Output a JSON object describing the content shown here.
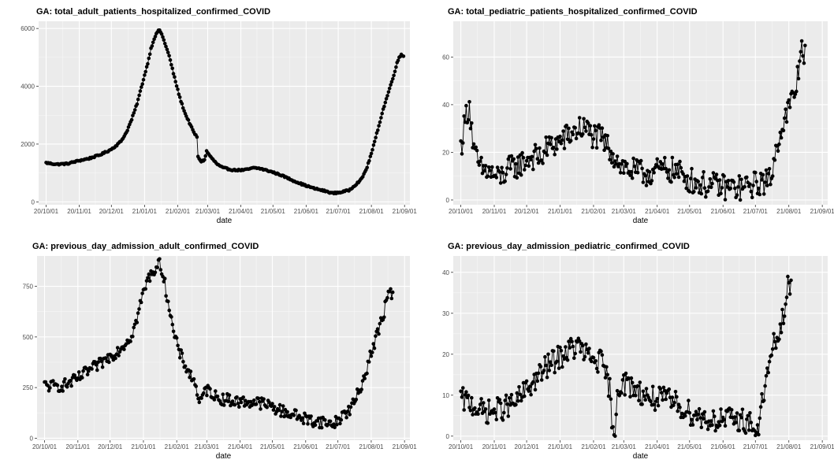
{
  "chart_data": [
    {
      "type": "line",
      "title": "GA: total_adult_patients_hospitalized_confirmed_COVID",
      "xlabel": "date",
      "ylabel": "",
      "xticks": [
        "20/10/01",
        "20/11/01",
        "20/12/01",
        "21/01/01",
        "21/02/01",
        "21/03/01",
        "21/04/01",
        "21/05/01",
        "21/06/01",
        "21/07/01",
        "21/08/01",
        "21/09/01"
      ],
      "yticks": [
        0,
        2000,
        4000,
        6000
      ],
      "ylim": [
        -100,
        6250
      ],
      "x_range_days": [
        -7,
        340
      ],
      "grid": true,
      "markers": "points",
      "anchors": [
        [
          0,
          1350
        ],
        [
          10,
          1300
        ],
        [
          20,
          1320
        ],
        [
          30,
          1420
        ],
        [
          40,
          1500
        ],
        [
          50,
          1620
        ],
        [
          60,
          1800
        ],
        [
          65,
          1930
        ],
        [
          70,
          2100
        ],
        [
          75,
          2400
        ],
        [
          80,
          2850
        ],
        [
          85,
          3400
        ],
        [
          90,
          4100
        ],
        [
          95,
          4800
        ],
        [
          98,
          5300
        ],
        [
          101,
          5650
        ],
        [
          104,
          5880
        ],
        [
          106,
          5950
        ],
        [
          108,
          5800
        ],
        [
          110,
          5600
        ],
        [
          115,
          5050
        ],
        [
          120,
          4300
        ],
        [
          125,
          3600
        ],
        [
          130,
          3050
        ],
        [
          135,
          2650
        ],
        [
          138,
          2400
        ],
        [
          141,
          2250
        ],
        [
          142,
          1550
        ],
        [
          145,
          1400
        ],
        [
          148,
          1450
        ],
        [
          150,
          1750
        ],
        [
          155,
          1500
        ],
        [
          160,
          1300
        ],
        [
          165,
          1180
        ],
        [
          175,
          1100
        ],
        [
          185,
          1100
        ],
        [
          195,
          1180
        ],
        [
          200,
          1150
        ],
        [
          210,
          1050
        ],
        [
          220,
          920
        ],
        [
          230,
          750
        ],
        [
          240,
          600
        ],
        [
          250,
          470
        ],
        [
          260,
          380
        ],
        [
          268,
          300
        ],
        [
          275,
          330
        ],
        [
          283,
          400
        ],
        [
          290,
          620
        ],
        [
          295,
          800
        ],
        [
          300,
          1200
        ],
        [
          305,
          1800
        ],
        [
          310,
          2500
        ],
        [
          315,
          3200
        ],
        [
          320,
          3800
        ],
        [
          325,
          4400
        ],
        [
          328,
          4800
        ],
        [
          330,
          5000
        ],
        [
          332,
          5100
        ],
        [
          334,
          5050
        ]
      ],
      "jitter": 25
    },
    {
      "type": "line",
      "title": "GA: total_pediatric_patients_hospitalized_confirmed_COVID",
      "xlabel": "date",
      "ylabel": "",
      "xticks": [
        "20/10/01",
        "20/11/01",
        "20/12/01",
        "21/01/01",
        "21/02/01",
        "21/03/01",
        "21/04/01",
        "21/05/01",
        "21/06/01",
        "21/07/01",
        "21/08/01",
        "21/09/01"
      ],
      "yticks": [
        0,
        20,
        40,
        60
      ],
      "ylim": [
        -2,
        75
      ],
      "x_range_days": [
        -7,
        340
      ],
      "grid": true,
      "markers": "points",
      "anchors": [
        [
          0,
          22
        ],
        [
          5,
          36
        ],
        [
          8,
          40
        ],
        [
          12,
          20
        ],
        [
          18,
          13
        ],
        [
          25,
          12
        ],
        [
          35,
          9
        ],
        [
          45,
          13
        ],
        [
          55,
          15
        ],
        [
          65,
          18
        ],
        [
          75,
          18
        ],
        [
          80,
          22
        ],
        [
          90,
          24
        ],
        [
          100,
          27
        ],
        [
          110,
          30
        ],
        [
          115,
          30
        ],
        [
          120,
          28
        ],
        [
          125,
          26
        ],
        [
          130,
          26
        ],
        [
          140,
          20
        ],
        [
          150,
          14
        ],
        [
          160,
          12
        ],
        [
          170,
          11
        ],
        [
          180,
          12
        ],
        [
          190,
          13
        ],
        [
          200,
          12
        ],
        [
          210,
          9
        ],
        [
          220,
          7
        ],
        [
          230,
          6
        ],
        [
          240,
          6
        ],
        [
          250,
          5
        ],
        [
          260,
          5
        ],
        [
          270,
          6
        ],
        [
          280,
          8
        ],
        [
          285,
          7
        ],
        [
          290,
          15
        ],
        [
          295,
          28
        ],
        [
          300,
          33
        ],
        [
          305,
          40
        ],
        [
          310,
          45
        ],
        [
          313,
          55
        ],
        [
          316,
          66
        ],
        [
          319,
          60
        ]
      ],
      "jitter": 5.5
    },
    {
      "type": "line",
      "title": "GA: previous_day_admission_adult_confirmed_COVID",
      "xlabel": "date",
      "ylabel": "",
      "xticks": [
        "20/10/01",
        "20/11/01",
        "20/12/01",
        "21/01/01",
        "21/02/01",
        "21/03/01",
        "21/04/01",
        "21/05/01",
        "21/06/01",
        "21/07/01",
        "21/08/01",
        "21/09/01"
      ],
      "yticks": [
        0,
        250,
        500,
        750
      ],
      "ylim": [
        -10,
        900
      ],
      "x_range_days": [
        -7,
        340
      ],
      "grid": true,
      "markers": "points",
      "anchors": [
        [
          0,
          260
        ],
        [
          10,
          255
        ],
        [
          20,
          265
        ],
        [
          30,
          290
        ],
        [
          40,
          330
        ],
        [
          50,
          360
        ],
        [
          60,
          400
        ],
        [
          70,
          440
        ],
        [
          80,
          500
        ],
        [
          85,
          570
        ],
        [
          90,
          680
        ],
        [
          95,
          770
        ],
        [
          100,
          820
        ],
        [
          105,
          850
        ],
        [
          108,
          860
        ],
        [
          112,
          760
        ],
        [
          116,
          650
        ],
        [
          120,
          520
        ],
        [
          125,
          430
        ],
        [
          130,
          370
        ],
        [
          135,
          320
        ],
        [
          140,
          270
        ],
        [
          145,
          170
        ],
        [
          150,
          240
        ],
        [
          155,
          230
        ],
        [
          160,
          200
        ],
        [
          170,
          190
        ],
        [
          180,
          180
        ],
        [
          190,
          180
        ],
        [
          200,
          175
        ],
        [
          210,
          160
        ],
        [
          220,
          135
        ],
        [
          230,
          120
        ],
        [
          240,
          100
        ],
        [
          250,
          85
        ],
        [
          260,
          80
        ],
        [
          265,
          70
        ],
        [
          270,
          75
        ],
        [
          275,
          100
        ],
        [
          280,
          125
        ],
        [
          285,
          145
        ],
        [
          290,
          200
        ],
        [
          295,
          260
        ],
        [
          300,
          350
        ],
        [
          305,
          440
        ],
        [
          310,
          520
        ],
        [
          315,
          600
        ],
        [
          318,
          680
        ],
        [
          321,
          720
        ],
        [
          324,
          700
        ]
      ],
      "jitter": 30
    },
    {
      "type": "line",
      "title": "GA: previous_day_admission_pediatric_confirmed_COVID",
      "xlabel": "date",
      "ylabel": "",
      "xticks": [
        "20/10/01",
        "20/11/01",
        "20/12/01",
        "21/01/01",
        "21/02/01",
        "21/03/01",
        "21/04/01",
        "21/05/01",
        "21/06/01",
        "21/07/01",
        "21/08/01",
        "21/09/01"
      ],
      "yticks": [
        0,
        10,
        20,
        30,
        40
      ],
      "ylim": [
        -1,
        44
      ],
      "x_range_days": [
        -7,
        340
      ],
      "grid": true,
      "markers": "points",
      "anchors": [
        [
          0,
          9
        ],
        [
          10,
          8
        ],
        [
          20,
          6
        ],
        [
          30,
          6
        ],
        [
          40,
          7
        ],
        [
          50,
          8
        ],
        [
          60,
          11
        ],
        [
          70,
          14
        ],
        [
          80,
          17
        ],
        [
          90,
          19
        ],
        [
          100,
          21
        ],
        [
          110,
          22
        ],
        [
          115,
          20
        ],
        [
          120,
          19
        ],
        [
          130,
          18
        ],
        [
          138,
          12
        ],
        [
          140,
          1
        ],
        [
          143,
          1
        ],
        [
          145,
          12
        ],
        [
          150,
          13
        ],
        [
          160,
          12
        ],
        [
          170,
          10
        ],
        [
          180,
          9
        ],
        [
          190,
          9
        ],
        [
          200,
          8
        ],
        [
          210,
          6
        ],
        [
          220,
          5
        ],
        [
          230,
          4
        ],
        [
          240,
          4
        ],
        [
          250,
          4
        ],
        [
          260,
          4
        ],
        [
          270,
          3
        ],
        [
          275,
          0
        ],
        [
          280,
          10
        ],
        [
          285,
          16
        ],
        [
          290,
          22
        ],
        [
          295,
          25
        ],
        [
          300,
          30
        ],
        [
          303,
          36
        ],
        [
          306,
          38
        ]
      ],
      "jitter": 3
    }
  ]
}
